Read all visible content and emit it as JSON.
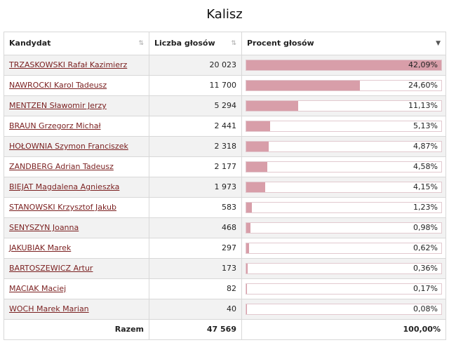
{
  "title": "Kalisz",
  "headers": {
    "candidate": "Kandydat",
    "votes": "Liczba głosów",
    "percent": "Procent głosów"
  },
  "sort_icons": {
    "candidate": "⇅",
    "votes": "⇅",
    "percent": "▼"
  },
  "rows": [
    {
      "name": "TRZASKOWSKI Rafał Kazimierz",
      "votes": "20 023",
      "percent_label": "42,09%",
      "percent": 42.09
    },
    {
      "name": "NAWROCKI Karol Tadeusz",
      "votes": "11 700",
      "percent_label": "24,60%",
      "percent": 24.6
    },
    {
      "name": "MENTZEN Sławomir Jerzy",
      "votes": "5 294",
      "percent_label": "11,13%",
      "percent": 11.13
    },
    {
      "name": "BRAUN Grzegorz Michał",
      "votes": "2 441",
      "percent_label": "5,13%",
      "percent": 5.13
    },
    {
      "name": "HOŁOWNIA Szymon Franciszek",
      "votes": "2 318",
      "percent_label": "4,87%",
      "percent": 4.87
    },
    {
      "name": "ZANDBERG Adrian Tadeusz",
      "votes": "2 177",
      "percent_label": "4,58%",
      "percent": 4.58
    },
    {
      "name": "BIEJAT Magdalena Agnieszka",
      "votes": "1 973",
      "percent_label": "4,15%",
      "percent": 4.15
    },
    {
      "name": "STANOWSKI Krzysztof Jakub",
      "votes": "583",
      "percent_label": "1,23%",
      "percent": 1.23
    },
    {
      "name": "SENYSZYN Joanna",
      "votes": "468",
      "percent_label": "0,98%",
      "percent": 0.98
    },
    {
      "name": "JAKUBIAK Marek",
      "votes": "297",
      "percent_label": "0,62%",
      "percent": 0.62
    },
    {
      "name": "BARTOSZEWICZ Artur",
      "votes": "173",
      "percent_label": "0,36%",
      "percent": 0.36
    },
    {
      "name": "MACIAK Maciej",
      "votes": "82",
      "percent_label": "0,17%",
      "percent": 0.17
    },
    {
      "name": "WOCH Marek Marian",
      "votes": "40",
      "percent_label": "0,08%",
      "percent": 0.08
    }
  ],
  "footer": {
    "label": "Razem",
    "total_votes": "47 569",
    "total_percent": "100,00%"
  },
  "colors": {
    "bar_fill": "#d89ea9",
    "link": "#7a1f1f"
  },
  "bar_scale_max_percent": 42.09
}
